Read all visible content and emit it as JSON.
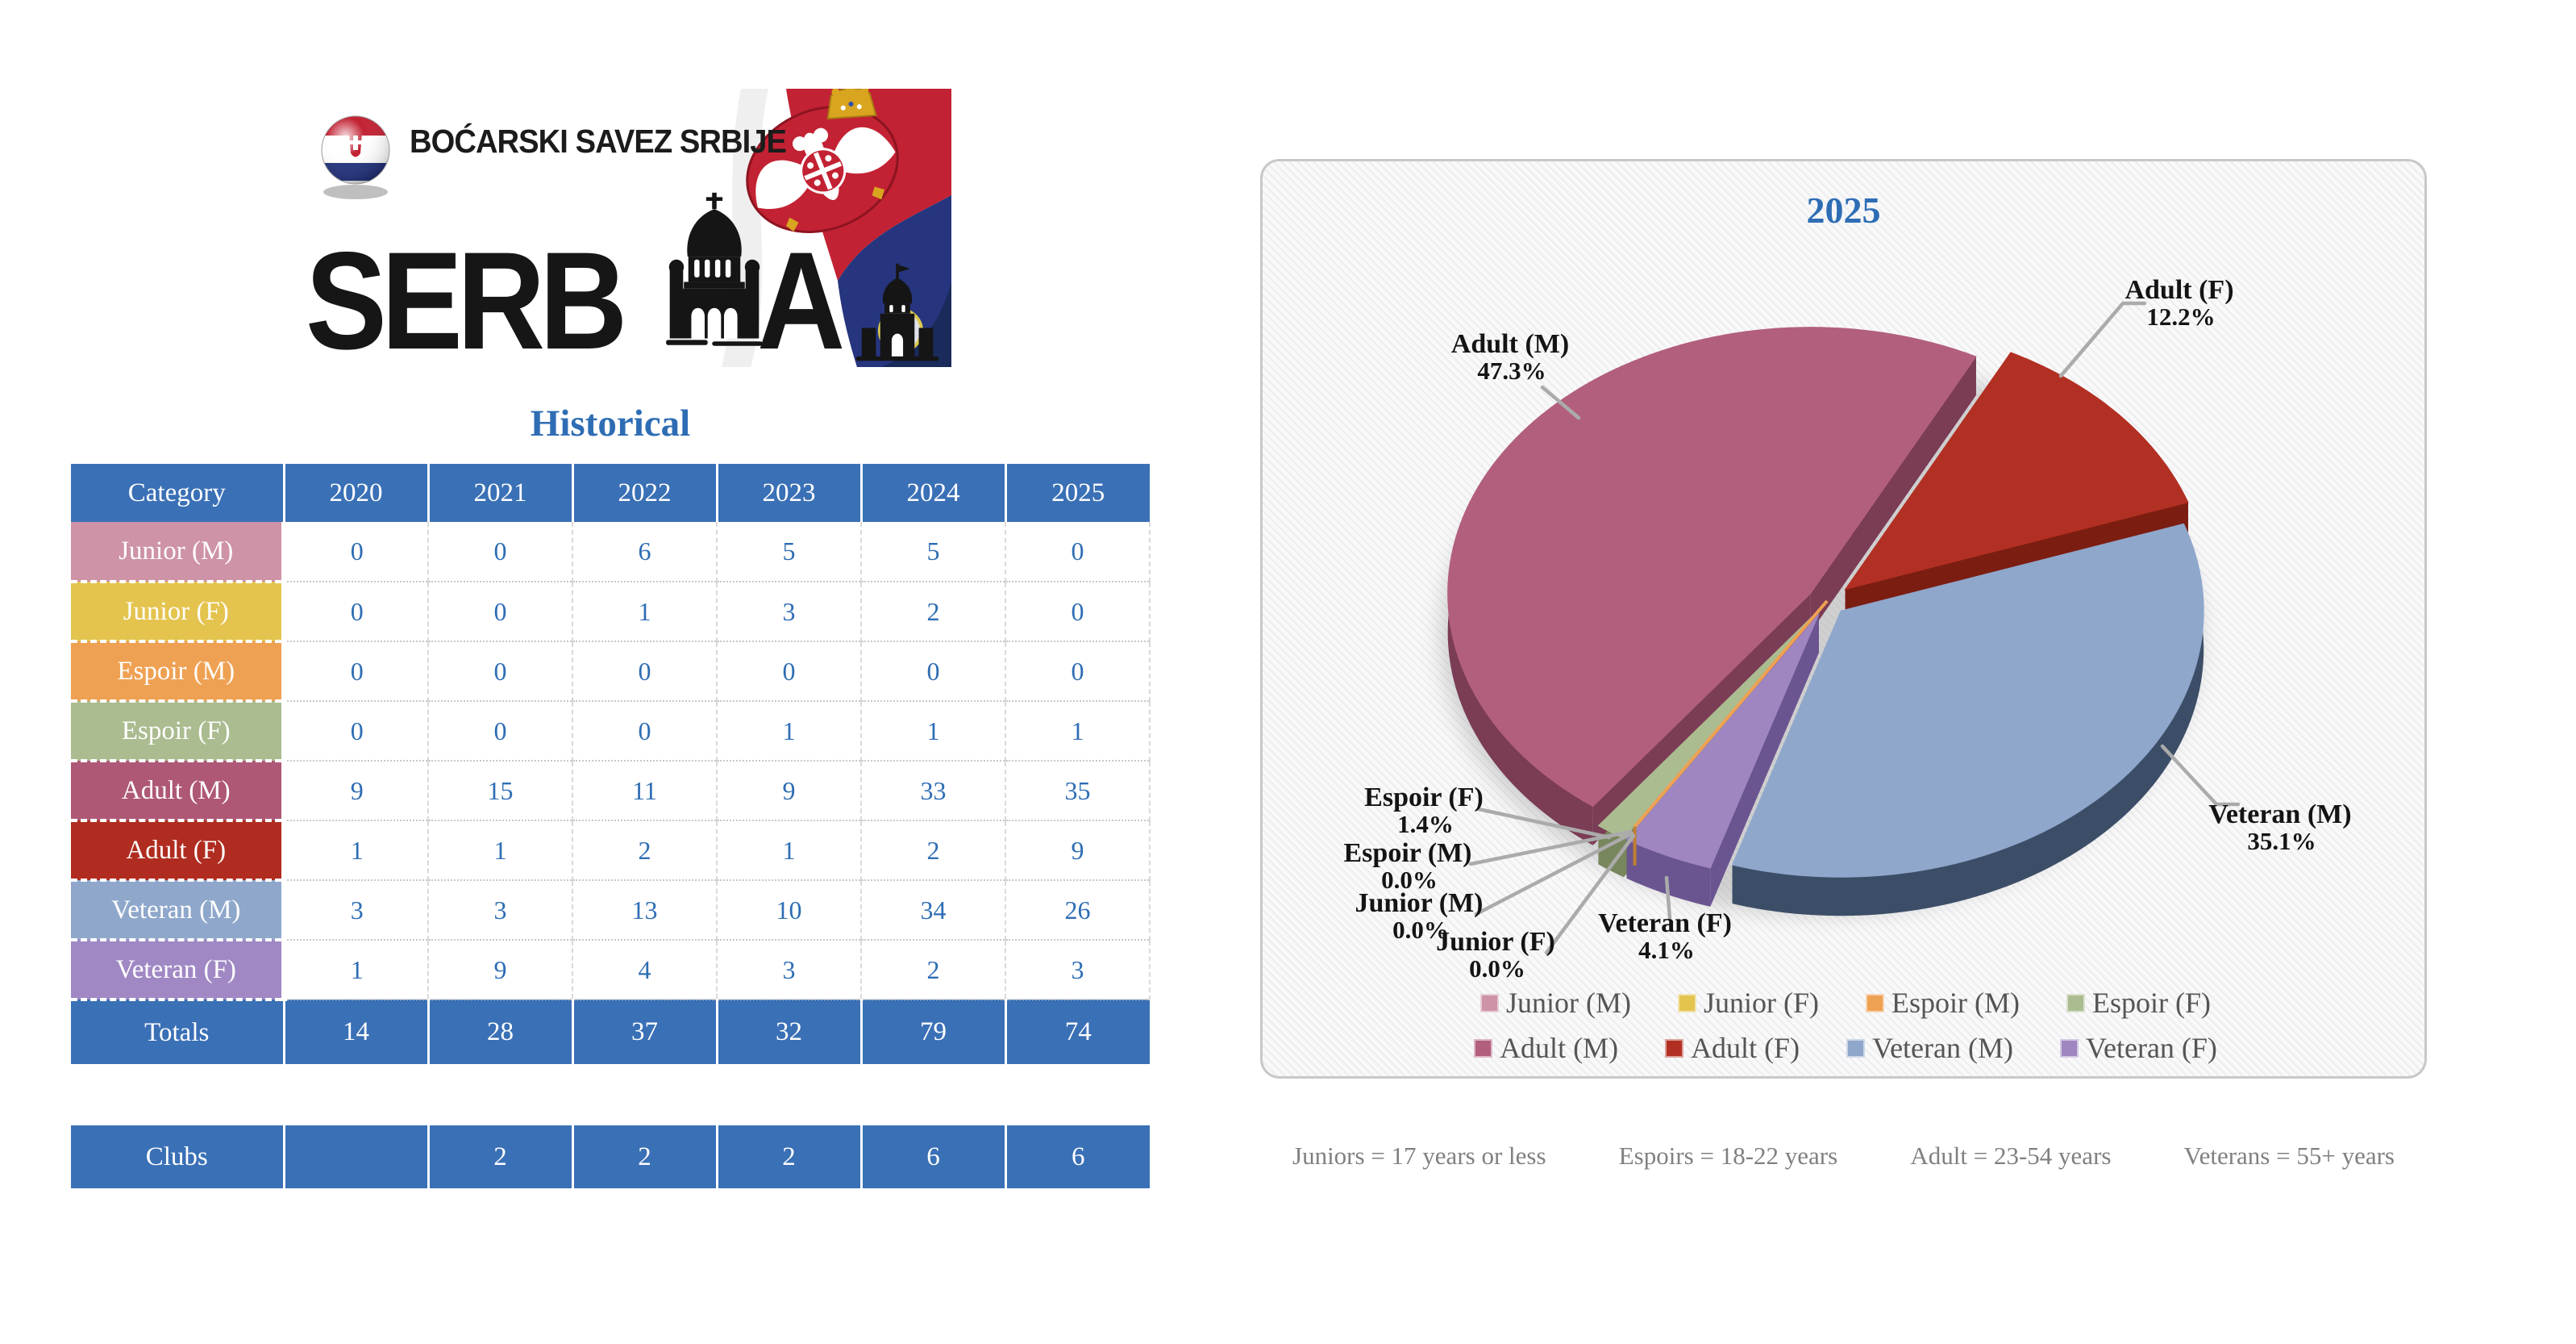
{
  "colors": {
    "table_blue": "#3A70B6",
    "accent_blue_text": "#2E6DB4",
    "definitions_gray": "#808080",
    "legend_text_gray": "#555555",
    "callout_line_gray": "#ABABAB",
    "flag_red": "#C22233",
    "flag_blue": "#26357E",
    "flag_navy": "#1A2A5A",
    "gold": "#D9A520"
  },
  "logo": {
    "federation_title": "BOĆARSKI SAVEZ SRBIJE",
    "country_left": "SERB",
    "country_right": "A"
  },
  "history": {
    "title": "Historical",
    "columns": [
      "Category",
      "2020",
      "2021",
      "2022",
      "2023",
      "2024",
      "2025"
    ],
    "rows": [
      {
        "label": "Junior (M)",
        "color": "#CE93A6",
        "values": [
          "0",
          "0",
          "6",
          "5",
          "5",
          "0"
        ]
      },
      {
        "label": "Junior (F)",
        "color": "#E4C44F",
        "values": [
          "0",
          "0",
          "1",
          "3",
          "2",
          "0"
        ]
      },
      {
        "label": "Espoir (M)",
        "color": "#EFA153",
        "values": [
          "0",
          "0",
          "0",
          "0",
          "0",
          "0"
        ]
      },
      {
        "label": "Espoir (F)",
        "color": "#ABBC90",
        "values": [
          "0",
          "0",
          "0",
          "1",
          "1",
          "1"
        ]
      },
      {
        "label": "Adult (M)",
        "color": "#AE5876",
        "values": [
          "9",
          "15",
          "11",
          "9",
          "33",
          "35"
        ]
      },
      {
        "label": "Adult (F)",
        "color": "#B02C20",
        "values": [
          "1",
          "1",
          "2",
          "1",
          "2",
          "9"
        ]
      },
      {
        "label": "Veteran (M)",
        "color": "#8FA7CB",
        "values": [
          "3",
          "3",
          "13",
          "10",
          "34",
          "26"
        ]
      },
      {
        "label": "Veteran (F)",
        "color": "#A088C4",
        "values": [
          "1",
          "9",
          "4",
          "3",
          "2",
          "3"
        ]
      }
    ],
    "totals": {
      "label": "Totals",
      "values": [
        "14",
        "28",
        "37",
        "32",
        "79",
        "74"
      ]
    },
    "clubs": {
      "label": "Clubs",
      "values": [
        "",
        "2",
        "2",
        "2",
        "6",
        "6"
      ]
    }
  },
  "chart_data": {
    "type": "pie",
    "title": "2025",
    "style": "3d-exploded",
    "start_angle_deg": 212,
    "total": 74,
    "slices": [
      {
        "name": "Junior (M)",
        "value": 0,
        "pct_label": "0.0%",
        "color": "#CE93A6",
        "wall": "#9A6577"
      },
      {
        "name": "Junior (F)",
        "value": 0,
        "pct_label": "0.0%",
        "color": "#E4C44F",
        "wall": "#A98F2E"
      },
      {
        "name": "Espoir (M)",
        "value": 0,
        "pct_label": "0.0%",
        "color": "#EFA153",
        "wall": "#C07F2F"
      },
      {
        "name": "Espoir (F)",
        "value": 1,
        "pct_label": "1.4%",
        "color": "#ABBC90",
        "wall": "#78865D"
      },
      {
        "name": "Adult (M)",
        "value": 35,
        "pct_label": "47.3%",
        "color": "#B25F7D",
        "wall": "#7B3C55"
      },
      {
        "name": "Adult (F)",
        "value": 9,
        "pct_label": "12.2%",
        "color": "#B23023",
        "wall": "#7C1D12"
      },
      {
        "name": "Veteran (M)",
        "value": 26,
        "pct_label": "35.1%",
        "color": "#8FA7CB",
        "wall": "#3C4E67"
      },
      {
        "name": "Veteran (F)",
        "value": 3,
        "pct_label": "4.1%",
        "color": "#9F86C0",
        "wall": "#6A5590"
      }
    ],
    "legend_rows": [
      [
        0,
        1,
        2,
        3
      ],
      [
        4,
        5,
        6,
        7
      ]
    ],
    "legend_position": "bottom"
  },
  "definitions": [
    "Juniors = 17 years or less",
    "Espoirs = 18-22 years",
    "Adult = 23-54 years",
    "Veterans = 55+ years"
  ]
}
